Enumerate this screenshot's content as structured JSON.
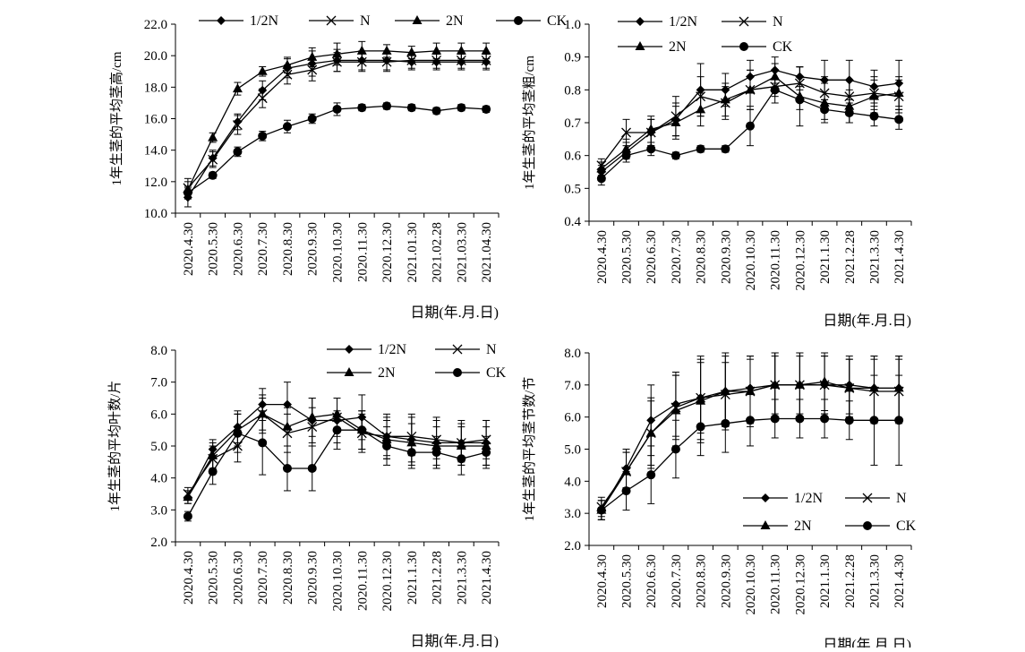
{
  "chart_data": [
    {
      "type": "line",
      "ylabel": "1年生茎的平均茎高/cm",
      "xlabel": "日期(年.月.日)",
      "categories": [
        "2020.4.30",
        "2020.5.30",
        "2020.6.30",
        "2020.7.30",
        "2020.8.30",
        "2020.9.30",
        "2020.10.30",
        "2020.11.30",
        "2020.12.30",
        "2021.01.30",
        "2021.02.28",
        "2021.03.30",
        "2021.04.30"
      ],
      "ylim": [
        10.0,
        22.0
      ],
      "ytick_step": 2.0,
      "ytick_decimals": 1,
      "legend_position": "top",
      "series": [
        {
          "name": "1/2N",
          "marker": "diamond",
          "values": [
            11.0,
            13.5,
            15.8,
            17.8,
            19.2,
            19.5,
            19.7,
            19.7,
            19.7,
            19.6,
            19.6,
            19.6,
            19.6
          ],
          "errors": [
            0.6,
            0.5,
            0.5,
            0.6,
            0.6,
            0.8,
            0.7,
            0.6,
            0.6,
            0.5,
            0.5,
            0.5,
            0.5
          ]
        },
        {
          "name": "N",
          "marker": "x",
          "values": [
            11.6,
            13.4,
            15.6,
            17.3,
            18.8,
            19.1,
            19.6,
            19.6,
            19.6,
            19.7,
            19.7,
            19.7,
            19.7
          ],
          "errors": [
            0.6,
            0.5,
            0.6,
            0.6,
            0.6,
            0.7,
            0.6,
            0.6,
            0.6,
            0.5,
            0.5,
            0.5,
            0.5
          ]
        },
        {
          "name": "2N",
          "marker": "triangle",
          "values": [
            11.5,
            14.8,
            17.9,
            19.0,
            19.4,
            19.9,
            20.1,
            20.3,
            20.3,
            20.2,
            20.3,
            20.3,
            20.3
          ],
          "errors": [
            0.5,
            0.3,
            0.4,
            0.3,
            0.5,
            0.6,
            0.7,
            0.6,
            0.4,
            0.4,
            0.5,
            0.5,
            0.5
          ]
        },
        {
          "name": "CK",
          "marker": "circle",
          "values": [
            11.3,
            12.4,
            13.9,
            14.9,
            15.5,
            16.0,
            16.6,
            16.7,
            16.8,
            16.7,
            16.5,
            16.7,
            16.6
          ],
          "errors": [
            0.4,
            0.2,
            0.3,
            0.3,
            0.4,
            0.3,
            0.4,
            0.2,
            0.2,
            0.2,
            0.2,
            0.2,
            0.2
          ]
        }
      ]
    },
    {
      "type": "line",
      "ylabel": "1年生茎的平均茎粗/cm",
      "xlabel": "日期(年.月.日)",
      "categories": [
        "2020.4.30",
        "2020.5.30",
        "2020.6.30",
        "2020.7.30",
        "2020.8.30",
        "2020.9.30",
        "2020.10.30",
        "2020.11.30",
        "2020.12.30",
        "2021.1.30",
        "2021.2.28",
        "2021.3.30",
        "2021.4.30"
      ],
      "ylim": [
        0.4,
        1.0
      ],
      "ytick_step": 0.1,
      "ytick_decimals": 1,
      "legend_position": "top",
      "series": [
        {
          "name": "1/2N",
          "marker": "diamond",
          "values": [
            0.55,
            0.61,
            0.67,
            0.71,
            0.8,
            0.8,
            0.84,
            0.86,
            0.84,
            0.83,
            0.83,
            0.81,
            0.82
          ],
          "errors": [
            0.02,
            0.03,
            0.04,
            0.05,
            0.08,
            0.05,
            0.05,
            0.04,
            0.03,
            0.06,
            0.06,
            0.05,
            0.07
          ]
        },
        {
          "name": "N",
          "marker": "x",
          "values": [
            0.57,
            0.67,
            0.67,
            0.72,
            0.78,
            0.76,
            0.8,
            0.81,
            0.82,
            0.79,
            0.78,
            0.79,
            0.78
          ],
          "errors": [
            0.02,
            0.04,
            0.04,
            0.06,
            0.06,
            0.05,
            0.06,
            0.05,
            0.05,
            0.05,
            0.05,
            0.05,
            0.05
          ]
        },
        {
          "name": "2N",
          "marker": "triangle",
          "values": [
            0.56,
            0.62,
            0.68,
            0.7,
            0.74,
            0.77,
            0.8,
            0.84,
            0.78,
            0.76,
            0.75,
            0.78,
            0.79
          ],
          "errors": [
            0.02,
            0.03,
            0.04,
            0.05,
            0.05,
            0.05,
            0.06,
            0.04,
            0.09,
            0.06,
            0.05,
            0.05,
            0.05
          ]
        },
        {
          "name": "CK",
          "marker": "circle",
          "values": [
            0.53,
            0.6,
            0.62,
            0.6,
            0.62,
            0.62,
            0.69,
            0.8,
            0.77,
            0.74,
            0.73,
            0.72,
            0.71
          ],
          "errors": [
            0.02,
            0.01,
            0.02,
            0.01,
            0.01,
            0.01,
            0.06,
            0.02,
            0.03,
            0.03,
            0.03,
            0.03,
            0.03
          ]
        }
      ]
    },
    {
      "type": "line",
      "ylabel": "1年生茎的平均叶数/片",
      "xlabel": "日期(年.月.日)",
      "categories": [
        "2020.4.30",
        "2020.5.30",
        "2020.6.30",
        "2020.7.30",
        "2020.8.30",
        "2020.9.30",
        "2020.10.30",
        "2020.11.30",
        "2020.12.30",
        "2021.1.30",
        "2021.2.28",
        "2021.3.30",
        "2021.4.30"
      ],
      "ylim": [
        2.0,
        8.0
      ],
      "ytick_step": 1.0,
      "ytick_decimals": 1,
      "legend_position": "top",
      "series": [
        {
          "name": "1/2N",
          "marker": "diamond",
          "values": [
            3.4,
            4.9,
            5.6,
            6.3,
            6.3,
            5.8,
            5.8,
            5.9,
            5.3,
            5.2,
            5.1,
            5.1,
            5.1
          ],
          "errors": [
            0.2,
            0.3,
            0.5,
            0.5,
            0.7,
            0.7,
            0.7,
            0.7,
            0.7,
            0.8,
            0.8,
            0.7,
            0.7
          ]
        },
        {
          "name": "N",
          "marker": "x",
          "values": [
            3.5,
            4.6,
            5.0,
            6.0,
            5.4,
            5.6,
            5.9,
            5.4,
            5.3,
            5.3,
            5.2,
            5.1,
            5.2
          ],
          "errors": [
            0.2,
            0.4,
            0.5,
            0.6,
            0.6,
            0.6,
            0.6,
            0.6,
            0.6,
            0.6,
            0.6,
            0.6,
            0.6
          ]
        },
        {
          "name": "2N",
          "marker": "triangle",
          "values": [
            3.4,
            4.7,
            5.5,
            6.0,
            5.6,
            5.9,
            6.0,
            5.5,
            5.2,
            5.1,
            5.0,
            5.0,
            5.0
          ],
          "errors": [
            0.2,
            0.4,
            0.5,
            0.5,
            0.6,
            0.6,
            0.5,
            0.6,
            0.6,
            0.6,
            0.6,
            0.6,
            0.6
          ]
        },
        {
          "name": "CK",
          "marker": "circle",
          "values": [
            2.8,
            4.2,
            5.4,
            5.1,
            4.3,
            4.3,
            5.5,
            5.5,
            5.0,
            4.8,
            4.8,
            4.6,
            4.8
          ],
          "errors": [
            0.15,
            0.4,
            0.6,
            1.0,
            0.7,
            0.7,
            0.6,
            0.6,
            0.6,
            0.5,
            0.5,
            0.5,
            0.5
          ]
        }
      ]
    },
    {
      "type": "line",
      "ylabel": "1年生茎的平均茎节数/节",
      "xlabel": "日期(年.月.日)",
      "categories": [
        "2020.4.30",
        "2020.5.30",
        "2020.6.30",
        "2020.7.30",
        "2020.8.30",
        "2020.9.30",
        "2020.10.30",
        "2020.11.30",
        "2020.12.30",
        "2021.1.30",
        "2021.2.28",
        "2021.3.30",
        "2021.4.30"
      ],
      "ylim": [
        2.0,
        8.0
      ],
      "ytick_step": 1.0,
      "ytick_decimals": 1,
      "legend_position": "bottom-right",
      "series": [
        {
          "name": "1/2N",
          "marker": "diamond",
          "values": [
            3.1,
            4.4,
            5.9,
            6.4,
            6.6,
            6.8,
            6.9,
            7.0,
            7.0,
            7.0,
            7.0,
            6.9,
            6.9
          ],
          "errors": [
            0.3,
            0.6,
            1.1,
            1.0,
            1.3,
            1.1,
            1.0,
            1.0,
            1.0,
            0.9,
            0.9,
            1.0,
            1.0
          ]
        },
        {
          "name": "N",
          "marker": "x",
          "values": [
            3.2,
            4.3,
            5.5,
            6.3,
            6.6,
            6.7,
            6.8,
            7.0,
            7.0,
            7.0,
            6.9,
            6.8,
            6.8
          ],
          "errors": [
            0.3,
            0.6,
            1.0,
            1.0,
            1.1,
            1.0,
            1.0,
            0.9,
            0.9,
            0.9,
            0.9,
            1.0,
            1.0
          ]
        },
        {
          "name": "2N",
          "marker": "triangle",
          "values": [
            3.1,
            4.3,
            5.5,
            6.2,
            6.5,
            6.8,
            6.8,
            7.0,
            7.0,
            7.1,
            6.9,
            6.9,
            6.9
          ],
          "errors": [
            0.3,
            0.6,
            1.1,
            1.1,
            1.3,
            1.2,
            1.1,
            1.0,
            1.0,
            0.9,
            0.9,
            1.0,
            1.0
          ]
        },
        {
          "name": "CK",
          "marker": "circle",
          "values": [
            3.1,
            3.7,
            4.2,
            5.0,
            5.7,
            5.8,
            5.9,
            5.95,
            5.95,
            5.95,
            5.9,
            5.9,
            5.9
          ],
          "errors": [
            0.3,
            0.6,
            0.9,
            0.9,
            0.9,
            0.9,
            0.8,
            0.6,
            0.6,
            0.6,
            0.6,
            1.4,
            1.4
          ]
        }
      ]
    }
  ]
}
